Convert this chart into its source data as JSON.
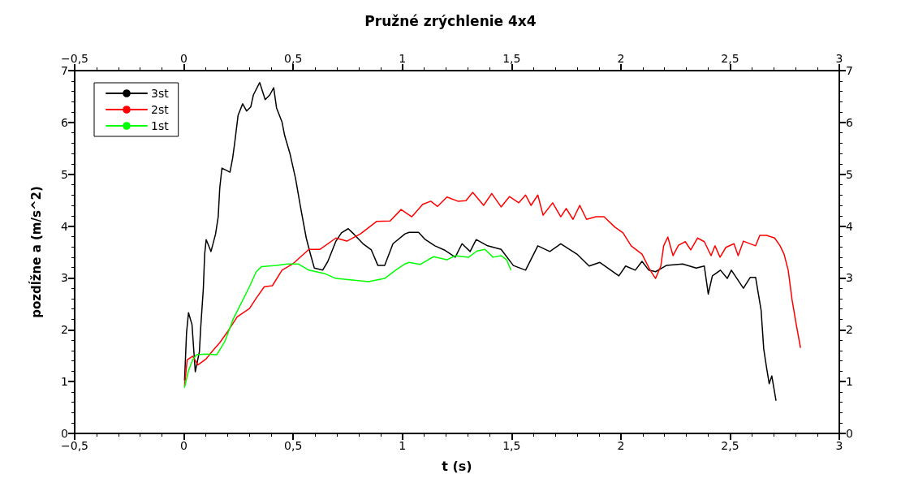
{
  "chart_data": {
    "type": "line",
    "title": "Pružné zrýchlenie 4x4",
    "xlabel": "t (s)",
    "ylabel": "pozdĺžne a (m/s^2)",
    "xlim": [
      -0.5,
      3
    ],
    "xticks": [
      {
        "value": -0.5,
        "label": "−0,5"
      },
      0,
      {
        "value": 0.5,
        "label": "0,5"
      },
      1,
      {
        "value": 1.5,
        "label": "1,5"
      },
      2,
      {
        "value": 2.5,
        "label": "2,5"
      },
      3
    ],
    "x2lim": [
      -0.5,
      3
    ],
    "x2ticks": [
      {
        "value": -0.5,
        "label": "−0,5"
      },
      0,
      {
        "value": 0.5,
        "label": "0,5"
      },
      1,
      {
        "value": 1.5,
        "label": "1,5"
      },
      2,
      {
        "value": 2.5,
        "label": "2,5"
      },
      3
    ],
    "ylim": [
      0,
      7
    ],
    "yticks": [
      0,
      1,
      2,
      3,
      4,
      5,
      6,
      7
    ],
    "y2lim": [
      0,
      7
    ],
    "y2ticks": [
      0,
      1,
      2,
      3,
      4,
      5,
      6,
      7
    ],
    "grid": false,
    "legend": "top left",
    "marker": "none",
    "line_style": "solid",
    "series": [
      {
        "name": "3st",
        "color": "#000000",
        "x": [
          0.003,
          0.012,
          0.021,
          0.037,
          0.052,
          0.071,
          0.077,
          0.089,
          0.095,
          0.102,
          0.124,
          0.145,
          0.157,
          0.164,
          0.174,
          0.211,
          0.223,
          0.232,
          0.248,
          0.269,
          0.287,
          0.306,
          0.318,
          0.347,
          0.372,
          0.393,
          0.411,
          0.424,
          0.449,
          0.461,
          0.486,
          0.511,
          0.535,
          0.56,
          0.579,
          0.597,
          0.635,
          0.659,
          0.696,
          0.721,
          0.752,
          0.777,
          0.82,
          0.858,
          0.888,
          0.919,
          0.957,
          1.012,
          1.031,
          1.074,
          1.105,
          1.149,
          1.192,
          1.242,
          1.273,
          1.31,
          1.338,
          1.39,
          1.452,
          1.508,
          1.564,
          1.62,
          1.675,
          1.725,
          1.799,
          1.855,
          1.904,
          1.991,
          2.022,
          2.066,
          2.097,
          2.128,
          2.159,
          2.208,
          2.283,
          2.345,
          2.382,
          2.4,
          2.419,
          2.456,
          2.487,
          2.506,
          2.561,
          2.592,
          2.617,
          2.63,
          2.642,
          2.654,
          2.667,
          2.679,
          2.691,
          2.71
        ],
        "values": [
          1.03,
          1.94,
          2.33,
          2.1,
          1.19,
          1.58,
          2.05,
          2.8,
          3.46,
          3.74,
          3.51,
          3.85,
          4.18,
          4.73,
          5.12,
          5.04,
          5.31,
          5.59,
          6.14,
          6.36,
          6.22,
          6.3,
          6.53,
          6.77,
          6.44,
          6.53,
          6.67,
          6.28,
          6.01,
          5.75,
          5.39,
          4.92,
          4.34,
          3.77,
          3.46,
          3.19,
          3.15,
          3.32,
          3.71,
          3.87,
          3.95,
          3.85,
          3.66,
          3.54,
          3.24,
          3.24,
          3.66,
          3.85,
          3.88,
          3.88,
          3.74,
          3.62,
          3.54,
          3.4,
          3.66,
          3.51,
          3.74,
          3.62,
          3.55,
          3.24,
          3.15,
          3.62,
          3.51,
          3.66,
          3.46,
          3.23,
          3.3,
          3.04,
          3.23,
          3.15,
          3.32,
          3.15,
          3.12,
          3.24,
          3.27,
          3.19,
          3.23,
          2.69,
          3.04,
          3.15,
          2.99,
          3.15,
          2.8,
          3.01,
          3.01,
          2.68,
          2.38,
          1.63,
          1.27,
          0.96,
          1.11,
          0.64
        ]
      },
      {
        "name": "2st",
        "color": "#ff0000",
        "x": [
          0.003,
          0.015,
          0.04,
          0.064,
          0.102,
          0.133,
          0.164,
          0.201,
          0.244,
          0.3,
          0.331,
          0.368,
          0.405,
          0.449,
          0.498,
          0.572,
          0.622,
          0.696,
          0.746,
          0.808,
          0.882,
          0.944,
          0.994,
          1.043,
          1.093,
          1.13,
          1.161,
          1.204,
          1.254,
          1.291,
          1.322,
          1.372,
          1.409,
          1.452,
          1.49,
          1.533,
          1.564,
          1.589,
          1.62,
          1.644,
          1.688,
          1.725,
          1.75,
          1.781,
          1.812,
          1.843,
          1.886,
          1.923,
          1.973,
          2.01,
          2.047,
          2.097,
          2.134,
          2.159,
          2.183,
          2.196,
          2.215,
          2.239,
          2.264,
          2.295,
          2.32,
          2.351,
          2.382,
          2.413,
          2.431,
          2.454,
          2.481,
          2.518,
          2.537,
          2.561,
          2.617,
          2.636,
          2.667,
          2.704,
          2.729,
          2.747,
          2.766,
          2.784,
          2.803,
          2.822
        ],
        "values": [
          0.92,
          1.42,
          1.49,
          1.32,
          1.44,
          1.6,
          1.75,
          1.97,
          2.25,
          2.41,
          2.61,
          2.83,
          2.85,
          3.15,
          3.27,
          3.55,
          3.55,
          3.77,
          3.71,
          3.85,
          4.09,
          4.1,
          4.32,
          4.18,
          4.42,
          4.48,
          4.38,
          4.56,
          4.48,
          4.49,
          4.65,
          4.4,
          4.63,
          4.37,
          4.57,
          4.45,
          4.6,
          4.4,
          4.6,
          4.21,
          4.45,
          4.18,
          4.34,
          4.13,
          4.4,
          4.13,
          4.18,
          4.18,
          3.98,
          3.87,
          3.62,
          3.46,
          3.15,
          2.99,
          3.23,
          3.62,
          3.79,
          3.43,
          3.63,
          3.7,
          3.54,
          3.77,
          3.7,
          3.43,
          3.62,
          3.4,
          3.59,
          3.66,
          3.43,
          3.71,
          3.62,
          3.82,
          3.82,
          3.77,
          3.62,
          3.46,
          3.15,
          2.57,
          2.1,
          1.66
        ]
      },
      {
        "name": "1st",
        "color": "#00ff00",
        "x": [
          0.003,
          0.021,
          0.04,
          0.058,
          0.102,
          0.151,
          0.188,
          0.226,
          0.269,
          0.3,
          0.331,
          0.356,
          0.424,
          0.473,
          0.523,
          0.572,
          0.647,
          0.696,
          0.771,
          0.845,
          0.919,
          0.969,
          1.012,
          1.031,
          1.081,
          1.143,
          1.204,
          1.242,
          1.304,
          1.341,
          1.378,
          1.415,
          1.452,
          1.477,
          1.496
        ],
        "values": [
          0.89,
          1.21,
          1.42,
          1.52,
          1.53,
          1.52,
          1.78,
          2.21,
          2.57,
          2.83,
          3.12,
          3.22,
          3.24,
          3.27,
          3.27,
          3.15,
          3.08,
          2.99,
          2.96,
          2.93,
          2.99,
          3.15,
          3.27,
          3.3,
          3.26,
          3.41,
          3.35,
          3.43,
          3.4,
          3.52,
          3.55,
          3.4,
          3.43,
          3.35,
          3.16
        ]
      }
    ]
  }
}
